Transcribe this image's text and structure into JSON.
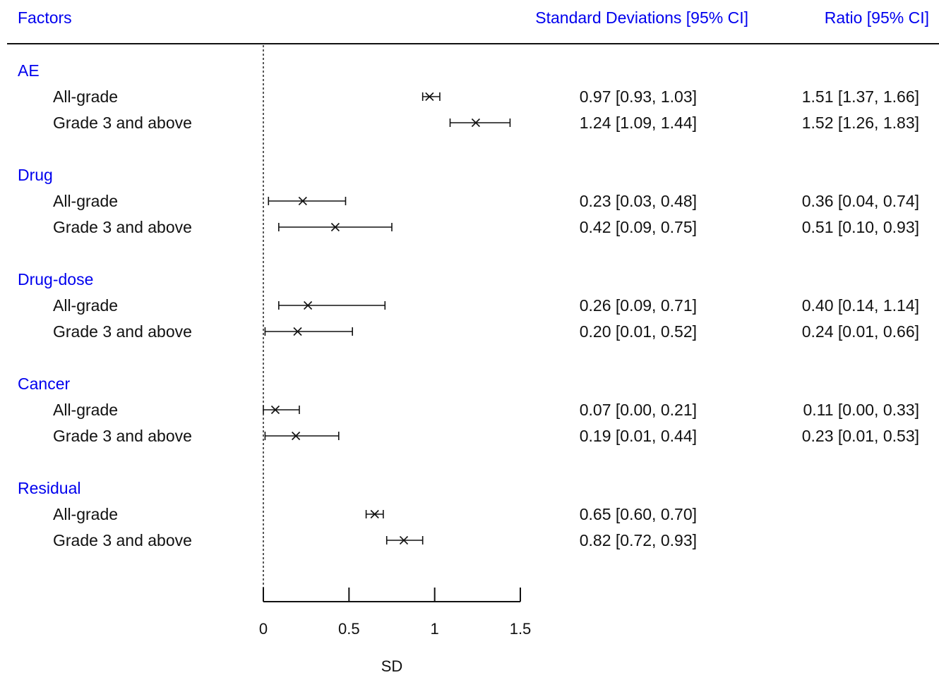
{
  "chart_data": {
    "type": "forest",
    "headers": {
      "factors": "Factors",
      "sd": "Standard Deviations [95% CI]",
      "ratio": "Ratio [95% CI]"
    },
    "xlabel": "SD",
    "xlim": [
      0,
      1.5
    ],
    "xticks": [
      0,
      0.5,
      1,
      1.5
    ],
    "xtick_labels": [
      "0",
      "0.5",
      "1",
      "1.5"
    ],
    "reference_line": 0,
    "groups": [
      {
        "name": "AE",
        "rows": [
          {
            "label": "All-grade",
            "est": 0.97,
            "lo": 0.93,
            "hi": 1.03,
            "sd_text": "0.97 [0.93, 1.03]",
            "ratio_text": "1.51 [1.37, 1.66]"
          },
          {
            "label": "Grade 3 and above",
            "est": 1.24,
            "lo": 1.09,
            "hi": 1.44,
            "sd_text": "1.24 [1.09, 1.44]",
            "ratio_text": "1.52 [1.26, 1.83]"
          }
        ]
      },
      {
        "name": "Drug",
        "rows": [
          {
            "label": "All-grade",
            "est": 0.23,
            "lo": 0.03,
            "hi": 0.48,
            "sd_text": "0.23 [0.03, 0.48]",
            "ratio_text": "0.36 [0.04, 0.74]"
          },
          {
            "label": "Grade 3 and above",
            "est": 0.42,
            "lo": 0.09,
            "hi": 0.75,
            "sd_text": "0.42 [0.09, 0.75]",
            "ratio_text": "0.51 [0.10, 0.93]"
          }
        ]
      },
      {
        "name": "Drug-dose",
        "rows": [
          {
            "label": "All-grade",
            "est": 0.26,
            "lo": 0.09,
            "hi": 0.71,
            "sd_text": "0.26 [0.09, 0.71]",
            "ratio_text": "0.40 [0.14, 1.14]"
          },
          {
            "label": "Grade 3 and above",
            "est": 0.2,
            "lo": 0.01,
            "hi": 0.52,
            "sd_text": "0.20 [0.01, 0.52]",
            "ratio_text": "0.24 [0.01, 0.66]"
          }
        ]
      },
      {
        "name": "Cancer",
        "rows": [
          {
            "label": "All-grade",
            "est": 0.07,
            "lo": 0.0,
            "hi": 0.21,
            "sd_text": "0.07 [0.00, 0.21]",
            "ratio_text": "0.11 [0.00, 0.33]"
          },
          {
            "label": "Grade 3 and above",
            "est": 0.19,
            "lo": 0.01,
            "hi": 0.44,
            "sd_text": "0.19 [0.01, 0.44]",
            "ratio_text": "0.23 [0.01, 0.53]"
          }
        ]
      },
      {
        "name": "Residual",
        "rows": [
          {
            "label": "All-grade",
            "est": 0.65,
            "lo": 0.6,
            "hi": 0.7,
            "sd_text": "0.65 [0.60, 0.70]",
            "ratio_text": ""
          },
          {
            "label": "Grade 3 and above",
            "est": 0.82,
            "lo": 0.72,
            "hi": 0.93,
            "sd_text": "0.82 [0.72, 0.93]",
            "ratio_text": ""
          }
        ]
      }
    ],
    "colors": {
      "headers": "#0000ee",
      "groups": "#0000ee",
      "text": "#111111",
      "marks": "#111111"
    }
  }
}
